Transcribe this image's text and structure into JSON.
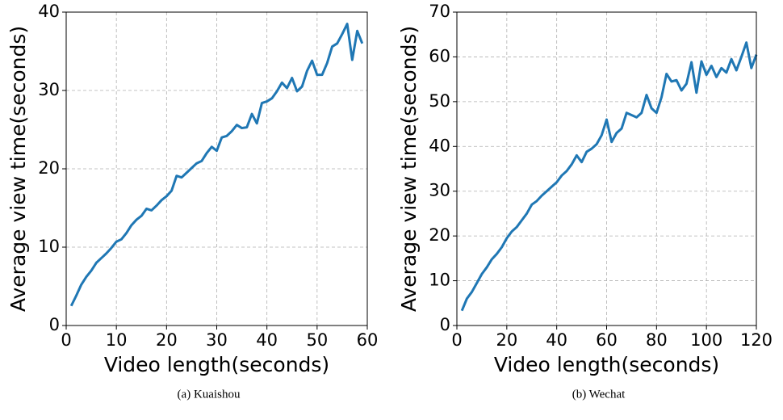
{
  "chart_data": [
    {
      "type": "line",
      "caption": "(a) Kuaishou",
      "xlabel": "Video length(seconds)",
      "ylabel": "Average view time(seconds)",
      "xlim": [
        0,
        60
      ],
      "ylim": [
        0,
        40
      ],
      "xticks": [
        0,
        10,
        20,
        30,
        40,
        50,
        60
      ],
      "yticks": [
        0,
        10,
        20,
        30,
        40
      ],
      "grid": true,
      "x": [
        1,
        2,
        3,
        4,
        5,
        6,
        7,
        8,
        9,
        10,
        11,
        12,
        13,
        14,
        15,
        16,
        17,
        18,
        19,
        20,
        21,
        22,
        23,
        24,
        25,
        26,
        27,
        28,
        29,
        30,
        31,
        32,
        33,
        34,
        35,
        36,
        37,
        38,
        39,
        40,
        41,
        42,
        43,
        44,
        45,
        46,
        47,
        48,
        49,
        50,
        51,
        52,
        53,
        54,
        55,
        56,
        57,
        58,
        59
      ],
      "series": [
        {
          "color": "#1f77b4",
          "values": [
            2.5,
            3.8,
            5.2,
            6.2,
            7.0,
            8.0,
            8.6,
            9.2,
            9.9,
            10.7,
            11.0,
            11.8,
            12.8,
            13.5,
            14.0,
            14.9,
            14.7,
            15.3,
            16.0,
            16.5,
            17.2,
            19.1,
            18.9,
            19.5,
            20.1,
            20.7,
            21.0,
            22.0,
            22.8,
            22.3,
            24.0,
            24.2,
            24.8,
            25.6,
            25.2,
            25.3,
            27.0,
            25.8,
            28.4,
            28.6,
            29.0,
            29.9,
            31.0,
            30.3,
            31.6,
            29.9,
            30.5,
            32.5,
            33.8,
            32.0,
            32.0,
            33.5,
            35.6,
            36.0,
            37.2,
            38.5,
            33.9,
            37.6,
            36.0
          ]
        }
      ]
    },
    {
      "type": "line",
      "caption": "(b) Wechat",
      "xlabel": "Video length(seconds)",
      "ylabel": "Average view time(seconds)",
      "xlim": [
        0,
        120
      ],
      "ylim": [
        0,
        70
      ],
      "xticks": [
        0,
        20,
        40,
        60,
        80,
        100,
        120
      ],
      "yticks": [
        0,
        10,
        20,
        30,
        40,
        50,
        60,
        70
      ],
      "grid": true,
      "x": [
        2,
        4,
        6,
        8,
        10,
        12,
        14,
        16,
        18,
        20,
        22,
        24,
        26,
        28,
        30,
        32,
        34,
        36,
        38,
        40,
        42,
        44,
        46,
        48,
        50,
        52,
        54,
        56,
        58,
        60,
        62,
        64,
        66,
        68,
        70,
        72,
        74,
        76,
        78,
        80,
        82,
        84,
        86,
        88,
        90,
        92,
        94,
        96,
        98,
        100,
        102,
        104,
        106,
        108,
        110,
        112,
        114,
        116,
        118,
        120
      ],
      "series": [
        {
          "color": "#1f77b4",
          "values": [
            3.3,
            6,
            7.5,
            9.5,
            11.5,
            13,
            14.8,
            16,
            17.5,
            19.5,
            21,
            22,
            23.5,
            25,
            27,
            27.8,
            29,
            30,
            31,
            32,
            33.5,
            34.5,
            36,
            38,
            36.5,
            38.8,
            39.5,
            40.5,
            42.5,
            46,
            41,
            43,
            44,
            47.5,
            47,
            46.5,
            47.5,
            51.5,
            48.5,
            47.5,
            51,
            56.2,
            54.5,
            54.8,
            52.5,
            54,
            58.8,
            52,
            59,
            56,
            58,
            55.5,
            57.5,
            56.5,
            59.5,
            57,
            60,
            63.2,
            57.5,
            60.5
          ]
        }
      ]
    }
  ]
}
